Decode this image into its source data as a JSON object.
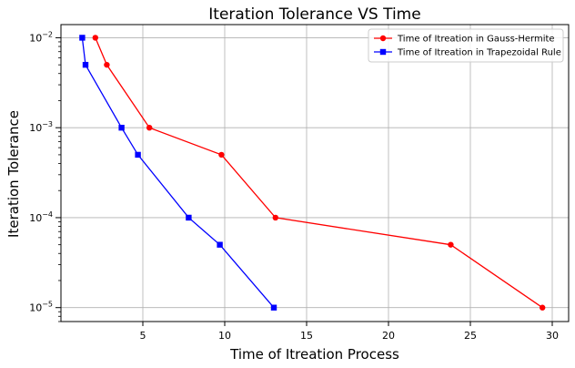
{
  "chart_data": {
    "type": "line",
    "title": "Iteration Tolerance VS Time",
    "xlabel": "Time of Itreation Process",
    "ylabel": "Iteration Tolerance",
    "xlim": [
      0,
      31
    ],
    "ylim": [
      7e-06,
      0.014
    ],
    "yscale": "log",
    "grid": true,
    "legend_position": "top-right",
    "x_ticks": [
      5,
      10,
      15,
      20,
      25,
      30
    ],
    "x_tick_labels": [
      "5",
      "10",
      "15",
      "20",
      "25",
      "30"
    ],
    "y_ticks": [
      0.01,
      0.001,
      0.0001,
      1e-05
    ],
    "y_tick_labels": [
      {
        "base": "10",
        "exp": "−2"
      },
      {
        "base": "10",
        "exp": "−3"
      },
      {
        "base": "10",
        "exp": "−4"
      },
      {
        "base": "10",
        "exp": "−5"
      }
    ],
    "series": [
      {
        "name": "Time of Itreation in Gauss-Hermite",
        "color": "#ff0000",
        "marker": "circle",
        "x": [
          2.1,
          2.8,
          5.4,
          9.8,
          13.1,
          23.8,
          29.4
        ],
        "y": [
          0.01,
          0.005,
          0.001,
          0.0005,
          0.0001,
          5e-05,
          1e-05
        ]
      },
      {
        "name": "Time of Itreation in Trapezoidal Rule",
        "color": "#0000ff",
        "marker": "square",
        "x": [
          1.3,
          1.5,
          3.7,
          4.7,
          7.8,
          9.7,
          13.0
        ],
        "y": [
          0.01,
          0.005,
          0.001,
          0.0005,
          0.0001,
          5e-05,
          1e-05
        ]
      }
    ]
  }
}
